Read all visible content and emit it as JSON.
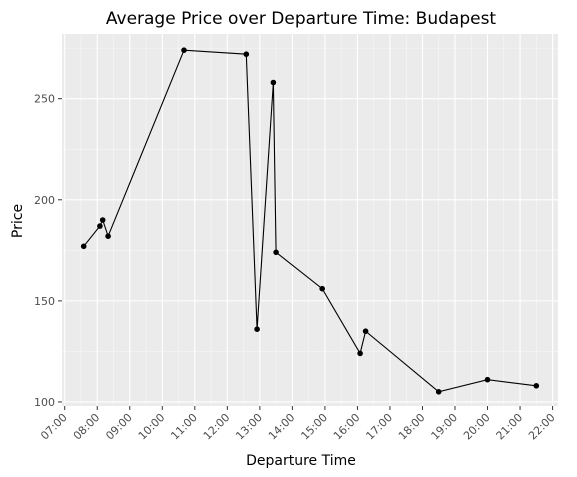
{
  "chart_data": {
    "type": "line",
    "title": "Average Price over Departure Time: Budapest",
    "xlabel": "Departure Time",
    "ylabel": "Price",
    "x_ticks": [
      "07:00",
      "08:00",
      "09:00",
      "10:00",
      "11:00",
      "12:00",
      "13:00",
      "14:00",
      "15:00",
      "16:00",
      "17:00",
      "18:00",
      "19:00",
      "20:00",
      "21:00",
      "22:00"
    ],
    "y_ticks": [
      100,
      150,
      200,
      250
    ],
    "xlim": [
      "06:55",
      "22:10"
    ],
    "ylim": [
      98,
      282
    ],
    "grid": true,
    "series": [
      {
        "points": [
          {
            "x": "07:35",
            "y": 177
          },
          {
            "x": "08:05",
            "y": 187
          },
          {
            "x": "08:10",
            "y": 190
          },
          {
            "x": "08:20",
            "y": 182
          },
          {
            "x": "10:40",
            "y": 274
          },
          {
            "x": "12:35",
            "y": 272
          },
          {
            "x": "12:55",
            "y": 136
          },
          {
            "x": "13:25",
            "y": 258
          },
          {
            "x": "13:30",
            "y": 174
          },
          {
            "x": "14:55",
            "y": 156
          },
          {
            "x": "16:05",
            "y": 124
          },
          {
            "x": "16:15",
            "y": 135
          },
          {
            "x": "18:30",
            "y": 105
          },
          {
            "x": "20:00",
            "y": 111
          },
          {
            "x": "21:30",
            "y": 108
          }
        ]
      }
    ],
    "colors": {
      "panel_background": "#ebebeb",
      "grid_major": "#ffffff",
      "line": "#000000",
      "points": "#000000",
      "tick_text": "#4d4d4d"
    }
  }
}
